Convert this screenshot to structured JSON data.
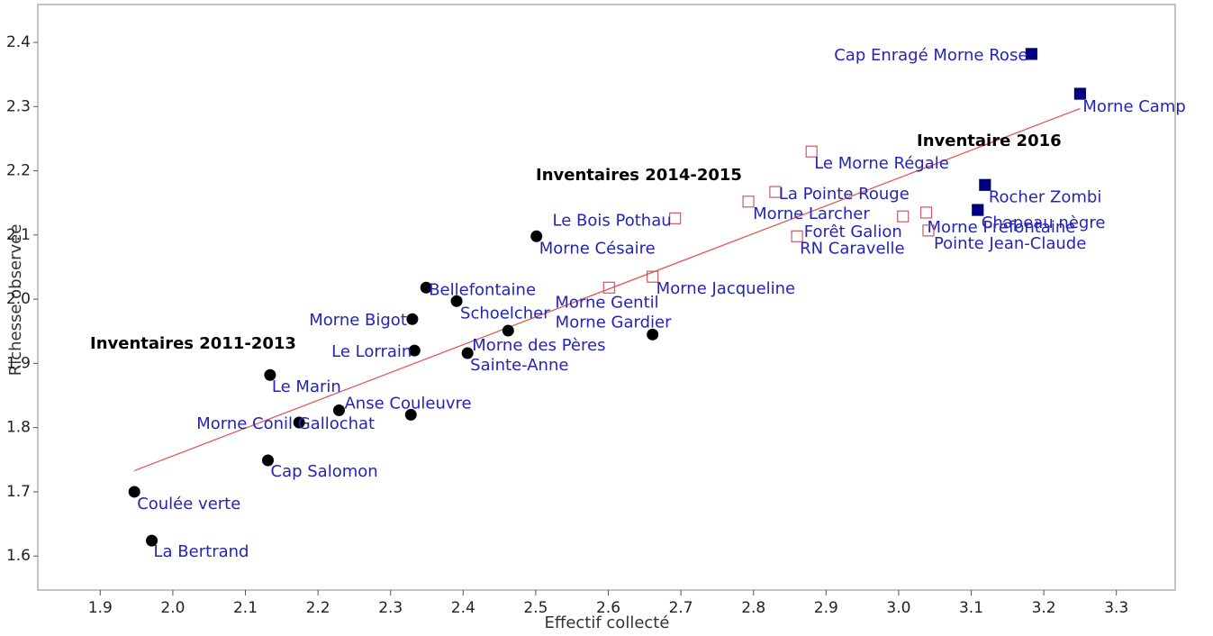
{
  "chart_data": {
    "type": "scatter",
    "x_label": "Effectif collecté",
    "y_label": "Richesse observée",
    "xlim": [
      1.814,
      3.381
    ],
    "ylim": [
      1.547,
      2.459
    ],
    "xticks": [
      1.9,
      {
        "value": 2,
        "label": "2.0"
      },
      2.1,
      2.2,
      2.3,
      2.4,
      2.5,
      2.6,
      2.7,
      2.8,
      2.9,
      {
        "value": 3,
        "label": "3.0"
      },
      3.1,
      3.2,
      3.3
    ],
    "yticks": [
      1.6,
      1.7,
      1.8,
      1.9,
      {
        "value": 2,
        "label": "2.0"
      },
      2.1,
      2.2,
      2.3,
      2.4
    ],
    "label_color": "#2424b8",
    "series": [
      {
        "name": "Inventaires 2011-2013",
        "color": "#000000",
        "marker": "circle",
        "filled": true,
        "labels": [
          "Coulée verte",
          "La Bertrand",
          "Cap Salomon",
          "Morne  Conil Gallochat",
          "Anse Couleuvre",
          null,
          "Le Marin",
          "Le Lorrain",
          "Morne Bigot",
          "Bellefontaine",
          "Schoelcher",
          "Morne des Pères",
          "Sainte-Anne",
          "Morne Gardier",
          "Morne Césaire"
        ],
        "x": [
          1.947,
          1.971,
          2.131,
          2.174,
          2.229,
          2.328,
          2.134,
          2.333,
          2.33,
          2.349,
          2.391,
          2.462,
          2.406,
          2.661,
          2.501
        ],
        "values": [
          1.7,
          1.624,
          1.749,
          1.808,
          1.827,
          1.82,
          1.882,
          1.92,
          1.969,
          2.018,
          1.997,
          1.951,
          1.916,
          1.945,
          2.098
        ]
      },
      {
        "name": "Inventaires 2014-2015",
        "color": "#c85a64",
        "marker": "square",
        "filled": false,
        "labels": [
          "Le Bois Pothau",
          "Morne Gentil",
          "Morne Jacqueline",
          "Morne Larcher",
          "La Pointe Rouge",
          "Le Morne Régale",
          "Forêt Galion",
          "RN Caravelle",
          "Morne Préfontaine",
          "Pointe Jean-Claude"
        ],
        "x": [
          2.692,
          2.601,
          2.661,
          2.793,
          2.83,
          2.88,
          3.006,
          2.86,
          3.038,
          3.041
        ],
        "values": [
          2.126,
          2.018,
          2.035,
          2.152,
          2.167,
          2.23,
          2.129,
          2.098,
          2.135,
          2.107
        ]
      },
      {
        "name": "Inventaire 2016",
        "color": "#000080",
        "marker": "square",
        "filled": true,
        "labels": [
          "Cap Enragé Morne Rose",
          "Morne Camp",
          "Rocher Zombi",
          "Chapeau nègre"
        ],
        "x": [
          3.183,
          3.25,
          3.119,
          3.109
        ],
        "values": [
          2.382,
          2.32,
          2.178,
          2.139
        ]
      }
    ],
    "trend_line": {
      "color": "#e05a5a",
      "x": [
        1.947,
        3.25
      ],
      "values": [
        1.733,
        2.297
      ]
    }
  }
}
